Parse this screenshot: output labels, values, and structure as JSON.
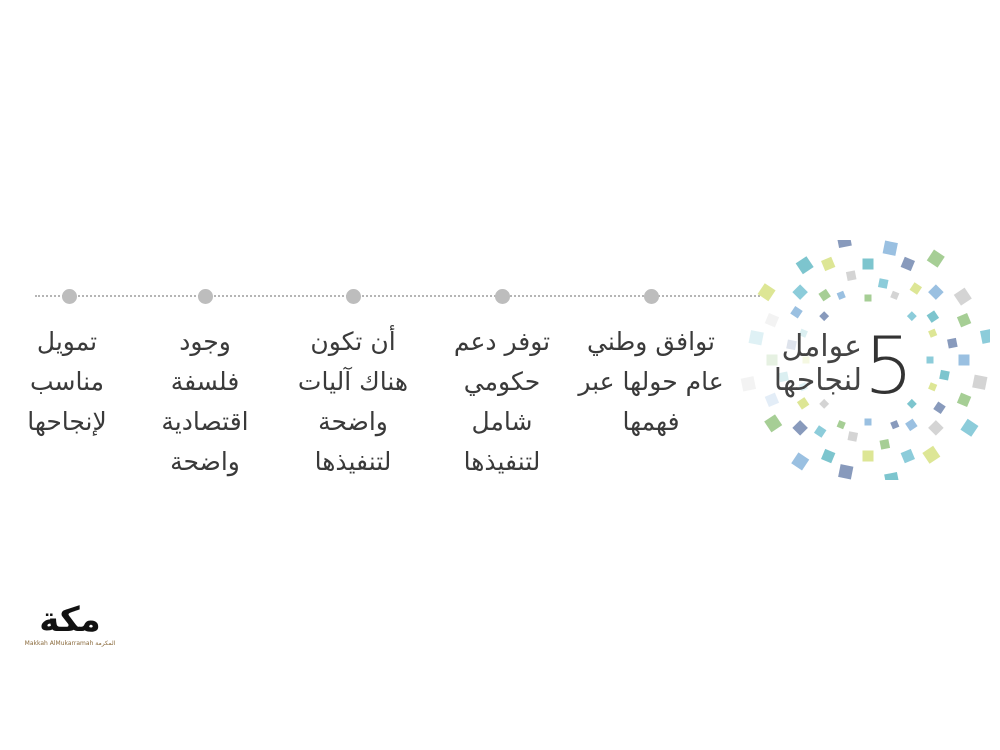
{
  "title": {
    "number": "5",
    "line1": "عوامل",
    "line2": "لنجاحها"
  },
  "factors": [
    {
      "text": "توافق وطني عام حولها عبر فهمها"
    },
    {
      "text": "توفر دعم حكومي شامل لتنفيذها"
    },
    {
      "text": "أن تكون هناك آليات واضحة لتنفيذها"
    },
    {
      "text": "وجود فلسفة اقتصادية واضحة"
    },
    {
      "text": "تمويل مناسب لإنجاحها"
    }
  ],
  "logo": {
    "mark": "مكة",
    "subtitle": "Makkah AlMukarramah المكرمة"
  },
  "colors": {
    "squares": [
      "#7fc6d6",
      "#9cc98a",
      "#7b8fb5",
      "#d9e38a",
      "#cfcfcf",
      "#8fb9de",
      "#6fbfc9"
    ],
    "dots": "#bdbdbd",
    "text": "#3a3a3a"
  }
}
